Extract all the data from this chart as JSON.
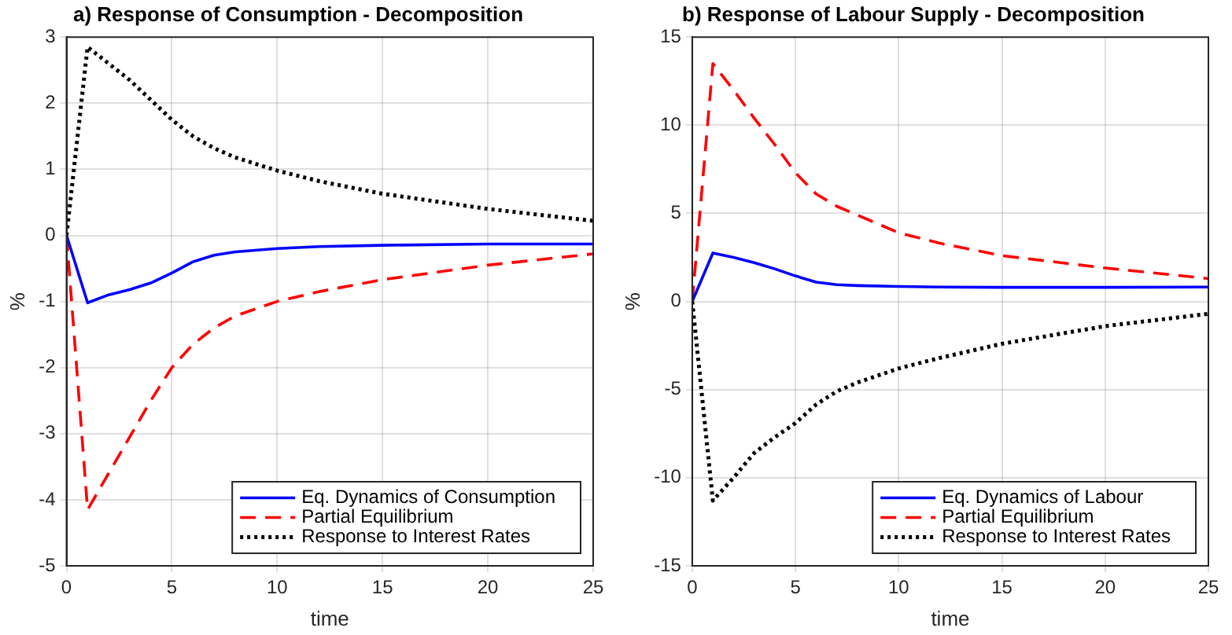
{
  "chart_data": [
    {
      "type": "line",
      "title": "a) Response of Consumption - Decomposition",
      "xlabel": "time",
      "ylabel": "%",
      "x": [
        0,
        1,
        2,
        3,
        4,
        5,
        6,
        7,
        8,
        10,
        12,
        15,
        20,
        25
      ],
      "xlim": [
        0,
        25
      ],
      "xticks": [
        0,
        5,
        10,
        15,
        20,
        25
      ],
      "ylim": [
        -5,
        3
      ],
      "yticks": [
        -5,
        -4,
        -3,
        -2,
        -1,
        0,
        1,
        2,
        3
      ],
      "grid": true,
      "legend": "bottom right",
      "marker": "none",
      "series": [
        {
          "name": "Eq. Dynamics of Consumption",
          "color": "#0000ff",
          "line_style": "solid",
          "values": [
            0,
            -1.02,
            -0.9,
            -0.82,
            -0.72,
            -0.57,
            -0.4,
            -0.3,
            -0.25,
            -0.2,
            -0.17,
            -0.15,
            -0.13,
            -0.13
          ]
        },
        {
          "name": "Partial Equilibrium",
          "color": "#ff0000",
          "line_style": "dashed",
          "values": [
            0,
            -4.15,
            -3.6,
            -3.05,
            -2.5,
            -2.0,
            -1.65,
            -1.4,
            -1.22,
            -1.0,
            -0.85,
            -0.67,
            -0.45,
            -0.28
          ]
        },
        {
          "name": "Response to Interest Rates",
          "color": "#000000",
          "line_style": "dotted",
          "values": [
            0,
            2.85,
            2.6,
            2.35,
            2.05,
            1.75,
            1.5,
            1.32,
            1.18,
            0.98,
            0.82,
            0.63,
            0.4,
            0.22
          ]
        }
      ]
    },
    {
      "type": "line",
      "title": "b) Response of Labour Supply - Decomposition",
      "xlabel": "time",
      "ylabel": "%",
      "x": [
        0,
        1,
        2,
        3,
        4,
        5,
        6,
        7,
        8,
        10,
        12,
        15,
        20,
        25
      ],
      "xlim": [
        0,
        25
      ],
      "xticks": [
        0,
        5,
        10,
        15,
        20,
        25
      ],
      "ylim": [
        -15,
        15
      ],
      "yticks": [
        -15,
        -10,
        -5,
        0,
        5,
        10,
        15
      ],
      "grid": true,
      "legend": "bottom right",
      "marker": "none",
      "series": [
        {
          "name": "Eq. Dynamics of Labour",
          "color": "#0000ff",
          "line_style": "solid",
          "values": [
            0,
            2.75,
            2.5,
            2.2,
            1.85,
            1.45,
            1.1,
            0.95,
            0.9,
            0.85,
            0.82,
            0.8,
            0.8,
            0.82
          ]
        },
        {
          "name": "Partial Equilibrium",
          "color": "#ff0000",
          "line_style": "dashed",
          "values": [
            0,
            13.5,
            12.0,
            10.4,
            8.9,
            7.3,
            6.1,
            5.4,
            4.9,
            3.9,
            3.3,
            2.6,
            1.9,
            1.3
          ]
        },
        {
          "name": "Response to Interest Rates",
          "color": "#000000",
          "line_style": "dotted",
          "values": [
            0,
            -11.3,
            -10.0,
            -8.6,
            -7.7,
            -6.9,
            -5.85,
            -5.1,
            -4.6,
            -3.8,
            -3.2,
            -2.4,
            -1.4,
            -0.7
          ]
        }
      ]
    }
  ]
}
